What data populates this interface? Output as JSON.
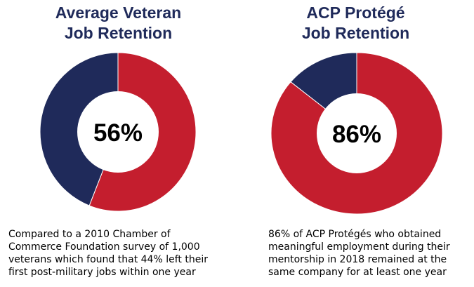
{
  "chart_data": [
    {
      "type": "donut",
      "title": [
        "Average Veteran",
        "Job Retention"
      ],
      "center_label": "56%",
      "values": [
        56,
        44
      ],
      "colors": [
        "#c41e2e",
        "#1f2a5a"
      ],
      "caption": [
        "Compared to a 2010 Chamber of",
        "Commerce Foundation survey of 1,000",
        "veterans which found that 44% left their",
        "first post-military jobs within one year"
      ]
    },
    {
      "type": "donut",
      "title": [
        "ACP Protégé",
        "Job Retention"
      ],
      "center_label": "86%",
      "values": [
        86,
        14
      ],
      "colors": [
        "#c41e2e",
        "#1f2a5a"
      ],
      "caption": [
        "86% of ACP Protégés who obtained",
        "meaningful employment during their",
        "mentorship in 2018 remained at the",
        "same company for at least one year"
      ]
    }
  ]
}
